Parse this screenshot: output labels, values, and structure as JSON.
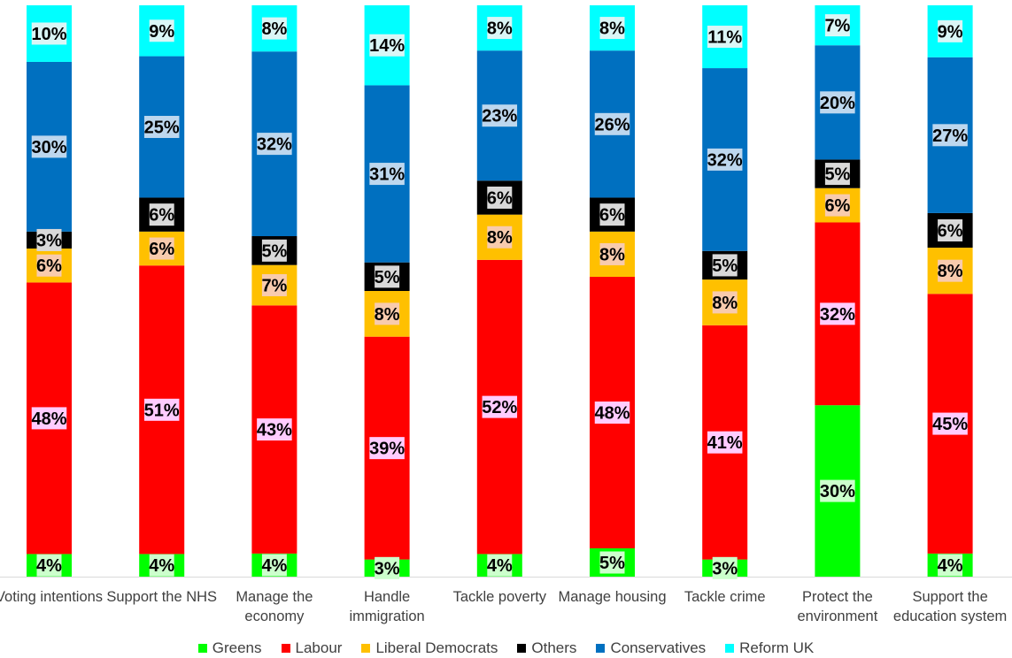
{
  "chart_data": {
    "type": "bar",
    "stacked": true,
    "categories": [
      "Voting intentions",
      "Support the NHS",
      "Manage the economy",
      "Handle immigration",
      "Tackle poverty",
      "Manage housing",
      "Tackle crime",
      "Protect the environment",
      "Support the education system"
    ],
    "category_lines": [
      [
        "Voting intentions"
      ],
      [
        "Support the NHS"
      ],
      [
        "Manage the",
        "economy"
      ],
      [
        "Handle",
        "immigration"
      ],
      [
        "Tackle poverty"
      ],
      [
        "Manage housing"
      ],
      [
        "Tackle crime"
      ],
      [
        "Protect the",
        "environment"
      ],
      [
        "Support the",
        "education system"
      ]
    ],
    "series": [
      {
        "name": "Greens",
        "color": "#00ff00",
        "label_bg": "#ccffcc",
        "values": [
          4,
          4,
          4,
          3,
          4,
          5,
          3,
          30,
          4
        ],
        "labels": [
          "4%",
          "4%",
          "4%",
          "3%",
          "4%",
          "5%",
          "3%",
          "30%",
          "4%"
        ]
      },
      {
        "name": "Labour",
        "color": "#ff0000",
        "label_bg": "#ffccff",
        "values": [
          48,
          51,
          43,
          39,
          52,
          48,
          41,
          32,
          45
        ],
        "labels": [
          "48%",
          "51%",
          "43%",
          "39%",
          "52%",
          "48%",
          "41%",
          "32%",
          "45%"
        ]
      },
      {
        "name": "Liberal Democrats",
        "color": "#ffc000",
        "label_bg": "#f8cbad",
        "values": [
          6,
          6,
          7,
          8,
          8,
          8,
          8,
          6,
          8
        ],
        "labels": [
          "6%",
          "6%",
          "7%",
          "8%",
          "8%",
          "8%",
          "8%",
          "6%",
          "8%"
        ]
      },
      {
        "name": "Others",
        "color": "#000000",
        "label_bg": "#d9d9d9",
        "values": [
          3,
          6,
          5,
          5,
          6,
          6,
          5,
          5,
          6
        ],
        "labels": [
          "3%",
          "6%",
          "5%",
          "5%",
          "6%",
          "6%",
          "5%",
          "5%",
          "6%"
        ]
      },
      {
        "name": "Conservatives",
        "color": "#0070c0",
        "label_bg": "#bdd7ee",
        "values": [
          30,
          25,
          32,
          31,
          23,
          26,
          32,
          20,
          27
        ],
        "labels": [
          "30%",
          "25%",
          "32%",
          "31%",
          "23%",
          "26%",
          "32%",
          "20%",
          "27%"
        ]
      },
      {
        "name": "Reform UK",
        "color": "#00ffff",
        "label_bg": "#daf6f6",
        "values": [
          10,
          9,
          8,
          14,
          8,
          8,
          11,
          7,
          9
        ],
        "labels": [
          "10%",
          "9%",
          "8%",
          "14%",
          "8%",
          "8%",
          "11%",
          "7%",
          "9%"
        ]
      }
    ],
    "legend_position": "bottom",
    "grid": false
  }
}
